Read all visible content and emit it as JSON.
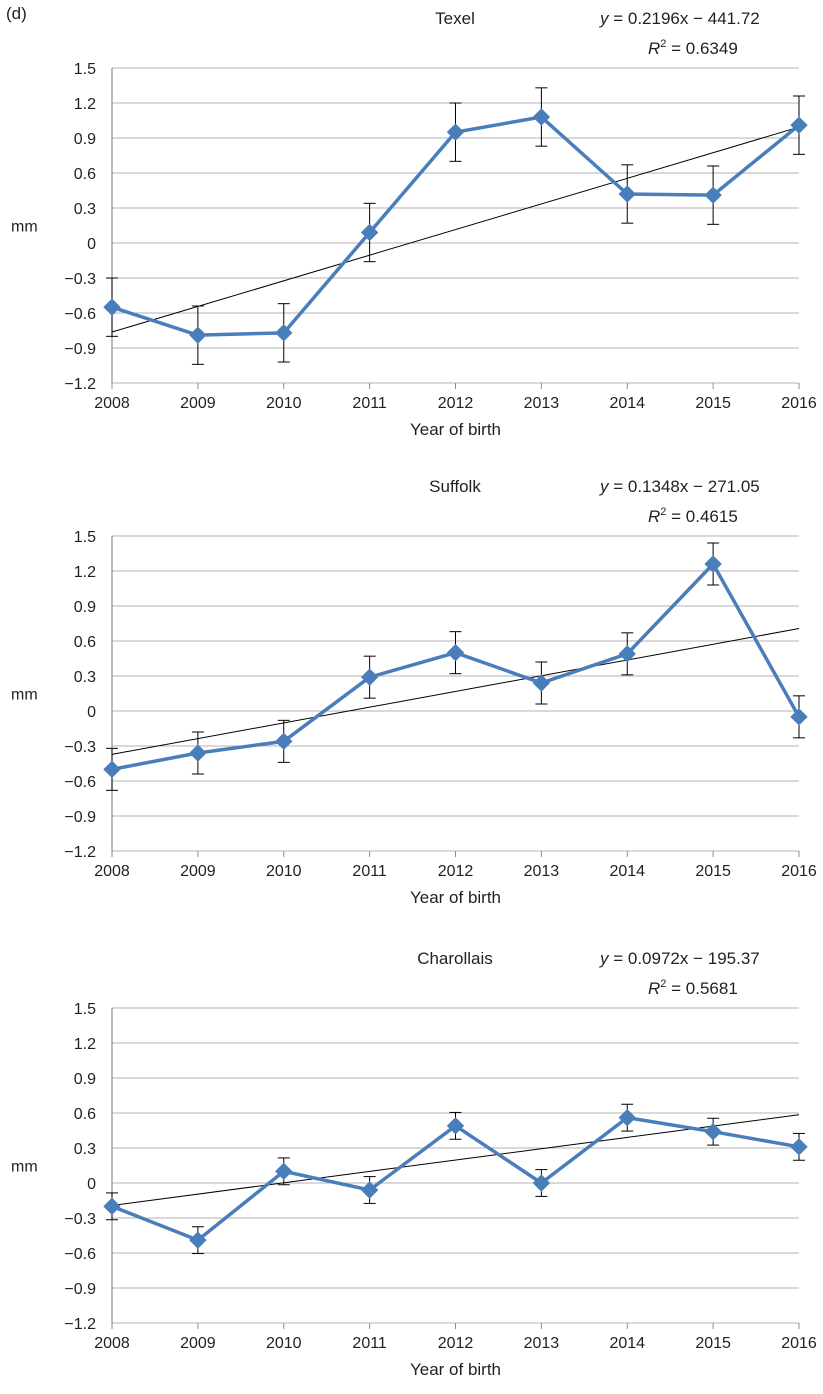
{
  "figure": {
    "panel_label": "(d)"
  },
  "chart_data": [
    {
      "type": "line",
      "title": "Texel",
      "xlabel": "Year of birth",
      "ylabel": "mm",
      "categories": [
        "2008",
        "2009",
        "2010",
        "2011",
        "2012",
        "2013",
        "2014",
        "2015",
        "2016"
      ],
      "series": [
        {
          "values": [
            -0.55,
            -0.79,
            -0.77,
            0.09,
            0.95,
            1.08,
            0.42,
            0.41,
            1.01
          ],
          "error": [
            0.25,
            0.25,
            0.25,
            0.25,
            0.25,
            0.25,
            0.25,
            0.25,
            0.25
          ]
        }
      ],
      "trendline": {
        "slope": 0.2196,
        "intercept": -441.72
      },
      "equation": {
        "lhs": "y",
        "rhs": " = 0.2196x − 441.72",
        "r2_label": "R",
        "r2_sup": "2",
        "r2_value": " = 0.6349"
      },
      "yticks": [
        "1.5",
        "1.2",
        "0.9",
        "0.6",
        "0.3",
        "0",
        "−0.3",
        "−0.6",
        "−0.9",
        "−1.2"
      ],
      "ylim": [
        -1.2,
        1.5
      ],
      "grid": true,
      "colors": {
        "series": "#4a7ebb",
        "trend": "#000000",
        "grid": "#b3b3b3"
      }
    },
    {
      "type": "line",
      "title": "Suffolk",
      "xlabel": "Year of birth",
      "ylabel": "mm",
      "categories": [
        "2008",
        "2009",
        "2010",
        "2011",
        "2012",
        "2013",
        "2014",
        "2015",
        "2016"
      ],
      "series": [
        {
          "values": [
            -0.5,
            -0.36,
            -0.26,
            0.29,
            0.5,
            0.24,
            0.49,
            1.26,
            -0.05
          ],
          "error": [
            0.18,
            0.18,
            0.18,
            0.18,
            0.18,
            0.18,
            0.18,
            0.18,
            0.18
          ]
        }
      ],
      "trendline": {
        "slope": 0.1348,
        "intercept": -271.05
      },
      "equation": {
        "lhs": "y",
        "rhs": " = 0.1348x − 271.05",
        "r2_label": "R",
        "r2_sup": "2",
        "r2_value": " = 0.4615"
      },
      "yticks": [
        "1.5",
        "1.2",
        "0.9",
        "0.6",
        "0.3",
        "0",
        "−0.3",
        "−0.6",
        "−0.9",
        "−1.2"
      ],
      "ylim": [
        -1.2,
        1.5
      ],
      "grid": true,
      "colors": {
        "series": "#4a7ebb",
        "trend": "#000000",
        "grid": "#b3b3b3"
      }
    },
    {
      "type": "line",
      "title": "Charollais",
      "xlabel": "Year of birth",
      "ylabel": "mm",
      "categories": [
        "2008",
        "2009",
        "2010",
        "2011",
        "2012",
        "2013",
        "2014",
        "2015",
        "2016"
      ],
      "series": [
        {
          "values": [
            -0.2,
            -0.49,
            0.1,
            -0.06,
            0.49,
            0.0,
            0.56,
            0.44,
            0.31
          ],
          "error": [
            0.115,
            0.115,
            0.115,
            0.115,
            0.115,
            0.115,
            0.115,
            0.115,
            0.115
          ]
        }
      ],
      "trendline": {
        "slope": 0.0972,
        "intercept": -195.37
      },
      "equation": {
        "lhs": "y",
        "rhs": " = 0.0972x − 195.37",
        "r2_label": "R",
        "r2_sup": "2",
        "r2_value": " = 0.5681"
      },
      "yticks": [
        "1.5",
        "1.2",
        "0.9",
        "0.6",
        "0.3",
        "0",
        "−0.3",
        "−0.6",
        "−0.9",
        "−1.2"
      ],
      "ylim": [
        -1.2,
        1.5
      ],
      "grid": true,
      "colors": {
        "series": "#4a7ebb",
        "trend": "#000000",
        "grid": "#b3b3b3"
      }
    }
  ]
}
